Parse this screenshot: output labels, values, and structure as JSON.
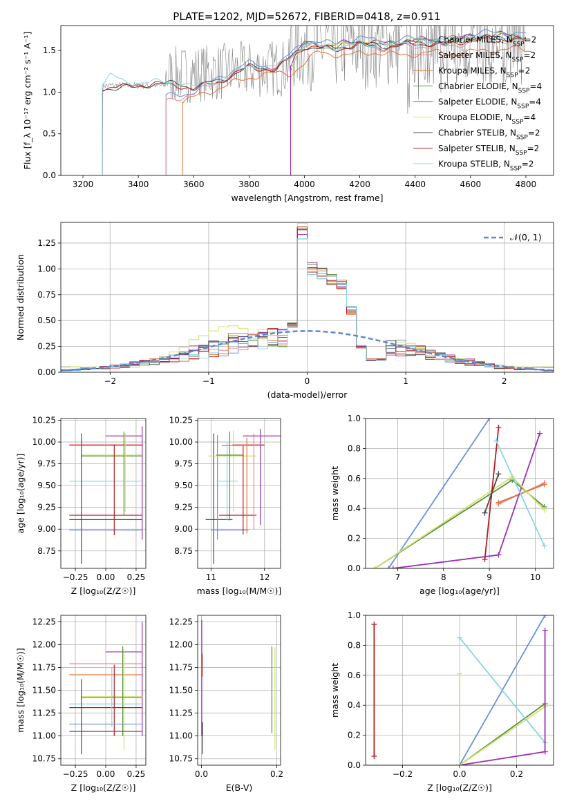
{
  "title": "PLATE=1202, MJD=52672, FIBERID=0418, z=0.911",
  "colors": {
    "chabrier_miles": "#6a8fdc",
    "salpeter_miles": "#e8868f",
    "kroupa_miles": "#e3743a",
    "chabrier_elodie": "#5a8f3c",
    "salpeter_elodie": "#9b2fb3",
    "kroupa_elodie": "#cfe36b",
    "chabrier_stelib": "#4a4a4a",
    "salpeter_stelib": "#b51c1c",
    "kroupa_stelib": "#86d6e3",
    "data": "#808080",
    "normal": "#5b86d6"
  },
  "chart_data": [
    {
      "id": "spectrum",
      "type": "line",
      "title": "PLATE=1202, MJD=52672, FIBERID=0418, z=0.911",
      "xlabel": "wavelength [Angstrom, rest frame]",
      "ylabel": "Flux [f_λ 10⁻¹⁷ erg cm⁻² s⁻¹ A⁻¹]",
      "xlim": [
        3120,
        4900
      ],
      "ylim": [
        0,
        1.8
      ],
      "xticks": [
        "3200",
        "3400",
        "3600",
        "3800",
        "4000",
        "4200",
        "4400",
        "4600",
        "4800"
      ],
      "yticks": [
        "0.0",
        "0.5",
        "1.0",
        "1.5"
      ],
      "legend": "upper right",
      "grid": false,
      "series": [
        {
          "name": "Chabrier MILES, N_SSP=2",
          "color_key": "chabrier_miles",
          "start": 3500,
          "points": [
            [
              3500,
              0.95
            ],
            [
              3600,
              1.0
            ],
            [
              3700,
              1.2
            ],
            [
              3800,
              1.35
            ],
            [
              3900,
              1.3
            ],
            [
              4000,
              1.62
            ],
            [
              4100,
              1.58
            ],
            [
              4200,
              1.65
            ],
            [
              4300,
              1.6
            ],
            [
              4400,
              1.65
            ],
            [
              4500,
              1.62
            ],
            [
              4600,
              1.7
            ],
            [
              4700,
              1.72
            ],
            [
              4800,
              1.7
            ]
          ]
        },
        {
          "name": "Salpeter MILES, N_SSP=2",
          "color_key": "salpeter_miles",
          "start": 3500,
          "points": [
            [
              3500,
              0.9
            ],
            [
              3600,
              0.98
            ],
            [
              3700,
              1.15
            ],
            [
              3800,
              1.3
            ],
            [
              3900,
              1.28
            ],
            [
              4000,
              1.58
            ],
            [
              4100,
              1.52
            ],
            [
              4200,
              1.56
            ],
            [
              4300,
              1.52
            ],
            [
              4400,
              1.56
            ],
            [
              4500,
              1.54
            ],
            [
              4600,
              1.6
            ],
            [
              4700,
              1.62
            ],
            [
              4800,
              1.6
            ]
          ]
        },
        {
          "name": "Kroupa MILES, N_SSP=2",
          "color_key": "kroupa_miles",
          "start": 3560,
          "points": [
            [
              3560,
              0.88
            ],
            [
              3650,
              1.0
            ],
            [
              3750,
              1.12
            ],
            [
              3850,
              1.22
            ],
            [
              3950,
              1.22
            ],
            [
              4050,
              1.48
            ],
            [
              4150,
              1.44
            ],
            [
              4250,
              1.48
            ],
            [
              4350,
              1.44
            ],
            [
              4450,
              1.48
            ],
            [
              4550,
              1.46
            ],
            [
              4650,
              1.5
            ],
            [
              4750,
              1.52
            ],
            [
              4820,
              1.5
            ]
          ]
        },
        {
          "name": "Chabrier ELODIE, N_SSP=4",
          "color_key": "chabrier_elodie",
          "start": 3950,
          "points": [
            [
              3950,
              1.3
            ],
            [
              4000,
              1.58
            ],
            [
              4100,
              1.54
            ],
            [
              4200,
              1.6
            ],
            [
              4300,
              1.57
            ],
            [
              4400,
              1.62
            ],
            [
              4500,
              1.6
            ],
            [
              4600,
              1.66
            ],
            [
              4700,
              1.68
            ],
            [
              4800,
              1.66
            ]
          ]
        },
        {
          "name": "Salpeter ELODIE, N_SSP=4",
          "color_key": "salpeter_elodie",
          "start": 3950,
          "points": [
            [
              3950,
              1.32
            ],
            [
              4000,
              1.6
            ],
            [
              4100,
              1.56
            ],
            [
              4200,
              1.62
            ],
            [
              4300,
              1.58
            ],
            [
              4400,
              1.63
            ],
            [
              4500,
              1.61
            ],
            [
              4600,
              1.67
            ],
            [
              4700,
              1.69
            ],
            [
              4800,
              1.67
            ]
          ]
        },
        {
          "name": "Kroupa ELODIE, N_SSP=4",
          "color_key": "kroupa_elodie",
          "start": 3955,
          "points": [
            [
              3955,
              1.28
            ],
            [
              4000,
              1.57
            ],
            [
              4100,
              1.55
            ],
            [
              4200,
              1.61
            ],
            [
              4300,
              1.58
            ],
            [
              4400,
              1.63
            ],
            [
              4500,
              1.6
            ],
            [
              4600,
              1.66
            ],
            [
              4700,
              1.68
            ],
            [
              4800,
              1.66
            ]
          ]
        },
        {
          "name": "Chabrier STELIB, N_SSP=2",
          "color_key": "chabrier_stelib",
          "start": 3270,
          "points": [
            [
              3270,
              1.05
            ],
            [
              3350,
              1.05
            ],
            [
              3450,
              1.1
            ],
            [
              3550,
              1.1
            ],
            [
              3600,
              1.05
            ],
            [
              3700,
              1.15
            ],
            [
              3800,
              1.3
            ],
            [
              3900,
              1.28
            ],
            [
              4000,
              1.55
            ],
            [
              4100,
              1.52
            ],
            [
              4200,
              1.58
            ],
            [
              4300,
              1.55
            ],
            [
              4400,
              1.6
            ],
            [
              4500,
              1.58
            ],
            [
              4600,
              1.64
            ],
            [
              4700,
              1.66
            ],
            [
              4800,
              1.64
            ]
          ]
        },
        {
          "name": "Salpeter STELIB, N_SSP=2",
          "color_key": "salpeter_stelib",
          "start": 3270,
          "points": [
            [
              3270,
              1.05
            ],
            [
              3350,
              1.06
            ],
            [
              3450,
              1.1
            ],
            [
              3550,
              1.08
            ],
            [
              3600,
              1.04
            ],
            [
              3700,
              1.14
            ],
            [
              3800,
              1.3
            ],
            [
              3900,
              1.27
            ],
            [
              4000,
              1.55
            ],
            [
              4100,
              1.51
            ],
            [
              4200,
              1.57
            ],
            [
              4300,
              1.54
            ],
            [
              4400,
              1.59
            ],
            [
              4500,
              1.57
            ],
            [
              4600,
              1.63
            ],
            [
              4700,
              1.65
            ],
            [
              4800,
              1.63
            ]
          ]
        },
        {
          "name": "Kroupa STELIB, N_SSP=2",
          "color_key": "kroupa_stelib",
          "start": 3270,
          "points": [
            [
              3270,
              1.1
            ],
            [
              3300,
              1.2
            ],
            [
              3350,
              1.12
            ],
            [
              3450,
              1.12
            ],
            [
              3550,
              1.12
            ],
            [
              3600,
              1.06
            ],
            [
              3700,
              1.16
            ],
            [
              3800,
              1.32
            ],
            [
              3900,
              1.3
            ],
            [
              4000,
              1.57
            ],
            [
              4100,
              1.53
            ],
            [
              4200,
              1.58
            ],
            [
              4300,
              1.55
            ],
            [
              4400,
              1.6
            ],
            [
              4500,
              1.58
            ],
            [
              4600,
              1.64
            ],
            [
              4700,
              1.66
            ],
            [
              4800,
              1.64
            ]
          ]
        }
      ]
    },
    {
      "id": "residuals",
      "type": "line",
      "xlabel": "(data-model)/error",
      "ylabel": "Normed distribution",
      "xlim": [
        -2.5,
        2.5
      ],
      "ylim": [
        0,
        1.45
      ],
      "xticks": [
        "−2",
        "−1",
        "0",
        "1",
        "2"
      ],
      "yticks": [
        "0.00",
        "0.25",
        "0.50",
        "0.75",
        "1.00",
        "1.25"
      ],
      "grid": true,
      "legend": "upper right",
      "normal_label": "𝒩(0, 1)",
      "hist_shape": {
        "centers": [
          -0.1,
          0.0,
          0.1,
          0.2,
          0.3,
          0.4,
          0.5,
          0.6,
          0.7
        ],
        "values": [
          0.45,
          1.35,
          1.0,
          0.95,
          0.9,
          0.85,
          0.6,
          0.25,
          0.12
        ]
      }
    },
    {
      "id": "age_vs_Z",
      "type": "scatter",
      "xlabel": "Z [log₁₀(Z/Z☉)]",
      "ylabel": "age  [log₁₀(age/yr)]",
      "xlim": [
        -0.37,
        0.33
      ],
      "ylim": [
        8.55,
        10.27
      ],
      "xticks": [
        "−0.25",
        "0.00",
        "0.25"
      ],
      "yticks": [
        "8.75",
        "9.00",
        "9.25",
        "9.50",
        "9.75",
        "10.00",
        "10.25"
      ],
      "grid": true
    },
    {
      "id": "age_vs_mass",
      "type": "scatter",
      "xlabel": "mass [log₁₀(M/M☉)]",
      "xlim": [
        10.75,
        12.3
      ],
      "ylim": [
        8.55,
        10.27
      ],
      "xticks": [
        "11",
        "12"
      ],
      "yticks": [
        "8.75",
        "9.00",
        "9.25",
        "9.50",
        "9.75",
        "10.00",
        "10.25"
      ],
      "grid": true
    },
    {
      "id": "weight_vs_age",
      "type": "line",
      "xlabel": "age  [log₁₀(age/yr)]",
      "ylabel": "mass weight",
      "xlim": [
        6.3,
        10.4
      ],
      "ylim": [
        0,
        1
      ],
      "xticks": [
        "7",
        "8",
        "9",
        "10"
      ],
      "yticks": [
        "0.0",
        "0.2",
        "0.4",
        "0.6",
        "0.8",
        "1.0"
      ],
      "grid": true,
      "series": [
        {
          "color_key": "chabrier_miles",
          "x": [
            6.8,
            9.0
          ],
          "y": [
            0.0,
            1.0
          ]
        },
        {
          "color_key": "salpeter_miles",
          "x": [
            9.2,
            10.2
          ],
          "y": [
            0.43,
            0.57
          ]
        },
        {
          "color_key": "kroupa_miles",
          "x": [
            9.2,
            10.2
          ],
          "y": [
            0.44,
            0.56
          ]
        },
        {
          "color_key": "chabrier_elodie",
          "x": [
            6.5,
            9.5,
            10.2
          ],
          "y": [
            0.0,
            0.59,
            0.41
          ]
        },
        {
          "color_key": "salpeter_elodie",
          "x": [
            6.9,
            9.2,
            10.1
          ],
          "y": [
            0.0,
            0.09,
            0.9
          ]
        },
        {
          "color_key": "kroupa_elodie",
          "x": [
            6.5,
            9.5,
            10.2
          ],
          "y": [
            0.0,
            0.61,
            0.39
          ]
        },
        {
          "color_key": "chabrier_stelib",
          "x": [
            8.9,
            9.2
          ],
          "y": [
            0.37,
            0.63
          ]
        },
        {
          "color_key": "salpeter_stelib",
          "x": [
            8.9,
            9.2
          ],
          "y": [
            0.06,
            0.94
          ]
        },
        {
          "color_key": "kroupa_stelib",
          "x": [
            9.15,
            10.2
          ],
          "y": [
            0.85,
            0.15
          ]
        }
      ]
    },
    {
      "id": "mass_vs_Z",
      "type": "scatter",
      "xlabel": "Z [log₁₀(Z/Z☉)]",
      "ylabel": "mass [log₁₀(M/M☉)]",
      "xlim": [
        -0.37,
        0.33
      ],
      "ylim": [
        10.68,
        12.32
      ],
      "xticks": [
        "−0.25",
        "0.00",
        "0.25"
      ],
      "yticks": [
        "10.75",
        "11.00",
        "11.25",
        "11.50",
        "11.75",
        "12.00",
        "12.25"
      ],
      "grid": true
    },
    {
      "id": "mass_vs_ebv",
      "type": "scatter",
      "xlabel": "E(B-V)",
      "xlim": [
        -0.01,
        0.21
      ],
      "ylim": [
        10.68,
        12.32
      ],
      "xticks": [
        "0.0",
        "0.2"
      ],
      "yticks": [
        "10.75",
        "11.00",
        "11.25",
        "11.50",
        "11.75",
        "12.00",
        "12.25"
      ],
      "grid": true
    },
    {
      "id": "weight_vs_Z",
      "type": "line",
      "xlabel": "Z [log₁₀(Z/Z☉)]",
      "ylabel": "mass weight",
      "xlim": [
        -0.33,
        0.33
      ],
      "ylim": [
        0,
        1
      ],
      "xticks": [
        "−0.2",
        "0.0",
        "0.2"
      ],
      "yticks": [
        "0.0",
        "0.2",
        "0.4",
        "0.6",
        "0.8",
        "1.0"
      ],
      "grid": true,
      "series": [
        {
          "color_key": "chabrier_miles",
          "x": [
            0.0,
            0.3
          ],
          "y": [
            0.0,
            1.0
          ]
        },
        {
          "color_key": "chabrier_elodie",
          "x": [
            0.0,
            0.3
          ],
          "y": [
            0.0,
            0.41
          ]
        },
        {
          "color_key": "salpeter_elodie",
          "x": [
            0.0,
            0.3
          ],
          "y": [
            0.0,
            0.09
          ]
        },
        {
          "color_key": "kroupa_elodie",
          "x": [
            0.0,
            0.3
          ],
          "y": [
            0.0,
            0.39
          ]
        },
        {
          "color_key": "kroupa_stelib",
          "x": [
            0.0,
            0.3
          ],
          "y": [
            0.85,
            0.15
          ]
        },
        {
          "color_key": "salpeter_stelib",
          "x": [
            -0.3,
            -0.3
          ],
          "y": [
            0.06,
            0.94
          ]
        },
        {
          "color_key": "kroupa_elodie",
          "x": [
            0.0,
            0.0
          ],
          "y": [
            0.0,
            0.61
          ]
        },
        {
          "color_key": "salpeter_elodie",
          "x": [
            0.3,
            0.3
          ],
          "y": [
            0.09,
            0.9
          ]
        }
      ]
    }
  ]
}
